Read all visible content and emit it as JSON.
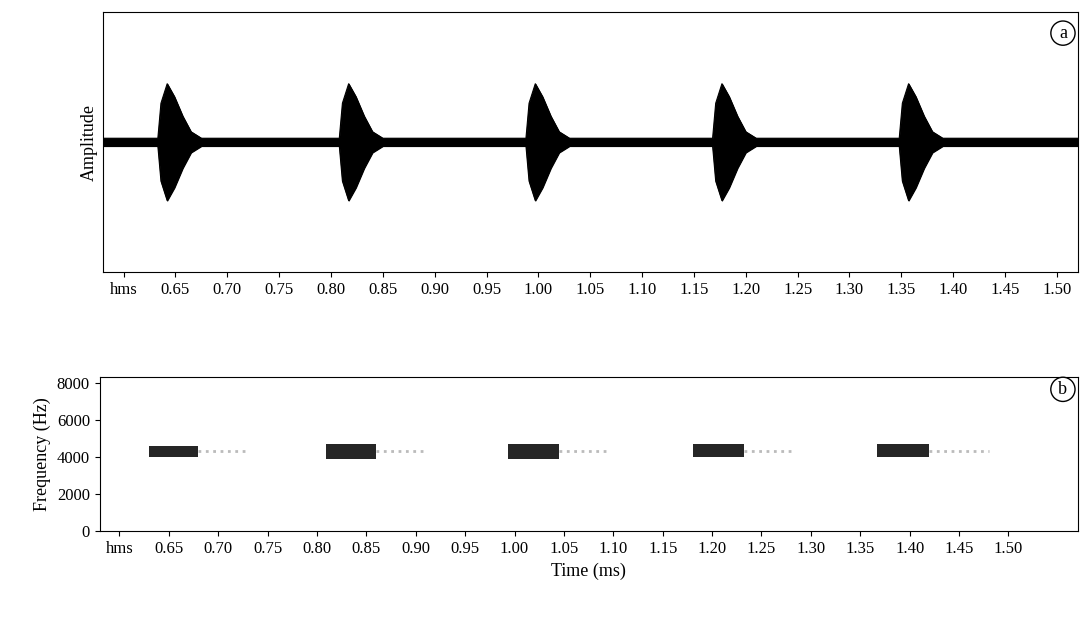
{
  "chart_data": [
    {
      "type": "waveform",
      "panel": "a",
      "ylabel": "Amplitude",
      "tick_labels": "x",
      "xlim": [
        0.58,
        1.52
      ],
      "ylim": [
        -1,
        1
      ],
      "color": "#000000",
      "xticks": [
        {
          "value": 0.6,
          "label": "hms"
        },
        0.65,
        {
          "value": 0.7,
          "label": "0.70"
        },
        0.75,
        {
          "value": 0.8,
          "label": "0.80"
        },
        0.85,
        {
          "value": 0.9,
          "label": "0.90"
        },
        0.95,
        {
          "value": 1.0,
          "label": "1.00"
        },
        1.05,
        {
          "value": 1.1,
          "label": "1.10"
        },
        1.15,
        {
          "value": 1.2,
          "label": "1.20"
        },
        1.25,
        {
          "value": 1.3,
          "label": "1.30"
        },
        1.35,
        {
          "value": 1.4,
          "label": "1.40"
        },
        1.45,
        {
          "value": 1.5,
          "label": "1.50"
        }
      ],
      "x": [
        0.58,
        0.633,
        0.636,
        0.642,
        0.649,
        0.657,
        0.665,
        0.675,
        0.808,
        0.811,
        0.817,
        0.824,
        0.832,
        0.84,
        0.85,
        0.988,
        0.991,
        0.997,
        1.004,
        1.012,
        1.02,
        1.03,
        1.168,
        1.171,
        1.177,
        1.184,
        1.192,
        1.2,
        1.21,
        1.348,
        1.351,
        1.357,
        1.364,
        1.372,
        1.38,
        1.39,
        1.52
      ],
      "values": [
        0.03,
        0.03,
        0.3,
        0.45,
        0.35,
        0.2,
        0.08,
        0.03,
        0.03,
        0.3,
        0.45,
        0.35,
        0.2,
        0.08,
        0.03,
        0.03,
        0.3,
        0.45,
        0.35,
        0.2,
        0.08,
        0.03,
        0.03,
        0.3,
        0.45,
        0.35,
        0.2,
        0.08,
        0.03,
        0.03,
        0.3,
        0.45,
        0.35,
        0.2,
        0.08,
        0.03,
        0.03
      ]
    },
    {
      "type": "spectrogram",
      "panel": "b",
      "ylabel": "Frequency (Hz)",
      "xlabel": "Time (ms)",
      "xlim": [
        0.58,
        1.57
      ],
      "ylim": [
        0,
        8300
      ],
      "color": "#000000",
      "xticks": [
        {
          "value": 0.6,
          "label": "hms"
        },
        0.65,
        {
          "value": 0.7,
          "label": "0.70"
        },
        0.75,
        {
          "value": 0.8,
          "label": "0.80"
        },
        0.85,
        {
          "value": 0.9,
          "label": "0.90"
        },
        0.95,
        {
          "value": 1.0,
          "label": "1.00"
        },
        1.05,
        {
          "value": 1.1,
          "label": "1.10"
        },
        1.15,
        {
          "value": 1.2,
          "label": "1.20"
        },
        1.25,
        {
          "value": 1.3,
          "label": "1.30"
        },
        1.35,
        {
          "value": 1.4,
          "label": "1.40"
        },
        1.45,
        {
          "value": 1.5,
          "label": "1.50"
        }
      ],
      "yticks": [
        0,
        2000,
        4000,
        6000,
        8000
      ],
      "blobs": [
        {
          "start": 0.63,
          "end": 0.68,
          "low": 4000,
          "high": 4600,
          "tail_end": 0.73
        },
        {
          "start": 0.809,
          "end": 0.86,
          "low": 3900,
          "high": 4700,
          "tail_end": 0.91
        },
        {
          "start": 0.993,
          "end": 1.045,
          "low": 3900,
          "high": 4700,
          "tail_end": 1.095
        },
        {
          "start": 1.181,
          "end": 1.232,
          "low": 4000,
          "high": 4700,
          "tail_end": 1.28
        },
        {
          "start": 1.367,
          "end": 1.42,
          "low": 4000,
          "high": 4700,
          "tail_end": 1.48
        }
      ]
    }
  ]
}
